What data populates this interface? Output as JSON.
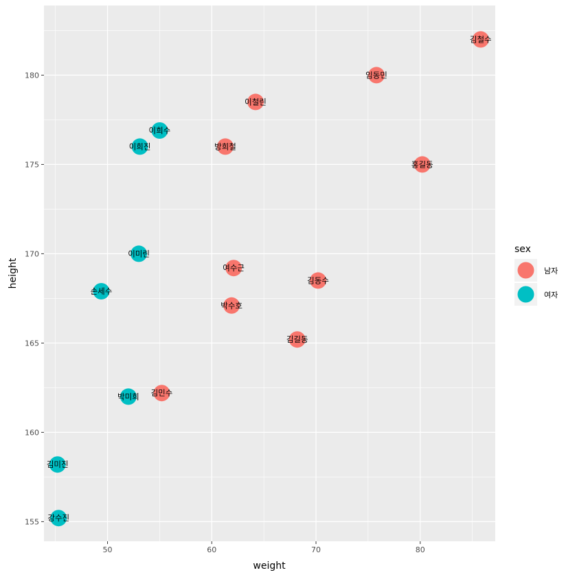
{
  "chart_data": {
    "type": "scatter",
    "title": "",
    "xlabel": "weight",
    "ylabel": "height",
    "xlim": [
      43.9,
      87.2
    ],
    "ylim": [
      153.9,
      183.9
    ],
    "xticks": [
      50,
      60,
      70,
      80
    ],
    "yticks": [
      155,
      160,
      165,
      170,
      175,
      180
    ],
    "grid": true,
    "legend": {
      "title": "sex",
      "position": "right",
      "entries": [
        "남자",
        "여자"
      ]
    },
    "colors": {
      "남자": "#F8766D",
      "여자": "#00BFC4"
    },
    "points": [
      {
        "name": "김철수",
        "weight": 85.8,
        "height": 182.0,
        "sex": "남자"
      },
      {
        "name": "임동민",
        "weight": 75.8,
        "height": 180.0,
        "sex": "남자"
      },
      {
        "name": "이철린",
        "weight": 64.2,
        "height": 178.5,
        "sex": "남자"
      },
      {
        "name": "방희철",
        "weight": 61.3,
        "height": 176.0,
        "sex": "남자"
      },
      {
        "name": "홍길동",
        "weight": 80.2,
        "height": 175.0,
        "sex": "남자"
      },
      {
        "name": "여수근",
        "weight": 62.1,
        "height": 169.2,
        "sex": "남자"
      },
      {
        "name": "김동수",
        "weight": 70.2,
        "height": 168.5,
        "sex": "남자"
      },
      {
        "name": "박수호",
        "weight": 61.9,
        "height": 167.1,
        "sex": "남자"
      },
      {
        "name": "김길동",
        "weight": 68.2,
        "height": 165.2,
        "sex": "남자"
      },
      {
        "name": "김민수",
        "weight": 55.2,
        "height": 162.2,
        "sex": "남자"
      },
      {
        "name": "이희수",
        "weight": 55.0,
        "height": 176.9,
        "sex": "여자"
      },
      {
        "name": "이희진",
        "weight": 53.1,
        "height": 176.0,
        "sex": "여자"
      },
      {
        "name": "이미린",
        "weight": 53.0,
        "height": 170.0,
        "sex": "여자"
      },
      {
        "name": "손세수",
        "weight": 49.4,
        "height": 167.9,
        "sex": "여자"
      },
      {
        "name": "박미희",
        "weight": 52.0,
        "height": 162.0,
        "sex": "여자"
      },
      {
        "name": "김미진",
        "weight": 45.2,
        "height": 158.2,
        "sex": "여자"
      },
      {
        "name": "강수진",
        "weight": 45.3,
        "height": 155.2,
        "sex": "여자"
      }
    ]
  }
}
